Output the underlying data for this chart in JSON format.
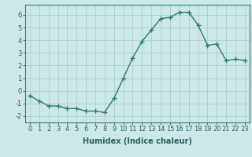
{
  "x": [
    0,
    1,
    2,
    3,
    4,
    5,
    6,
    7,
    8,
    9,
    10,
    11,
    12,
    13,
    14,
    15,
    16,
    17,
    18,
    19,
    20,
    21,
    22,
    23
  ],
  "y": [
    -0.4,
    -0.8,
    -1.2,
    -1.2,
    -1.4,
    -1.4,
    -1.6,
    -1.6,
    -1.7,
    -0.6,
    1.0,
    2.6,
    3.9,
    4.8,
    5.7,
    5.8,
    6.2,
    6.2,
    5.2,
    3.6,
    3.7,
    2.4,
    2.5,
    2.4
  ],
  "line_color": "#2d7d6e",
  "marker": "+",
  "marker_size": 4,
  "bg_color": "#cce8e8",
  "grid_color": "#b0cccc",
  "xlabel": "Humidex (Indice chaleur)",
  "xlim": [
    -0.5,
    23.5
  ],
  "ylim": [
    -2.5,
    6.8
  ],
  "yticks": [
    -2,
    -1,
    0,
    1,
    2,
    3,
    4,
    5,
    6
  ],
  "xtick_labels": [
    "0",
    "1",
    "2",
    "3",
    "4",
    "5",
    "6",
    "7",
    "8",
    "9",
    "10",
    "11",
    "12",
    "13",
    "14",
    "15",
    "16",
    "17",
    "18",
    "19",
    "20",
    "21",
    "22",
    "23"
  ],
  "tick_fontsize": 6,
  "xlabel_fontsize": 7,
  "label_color": "#2d6060"
}
